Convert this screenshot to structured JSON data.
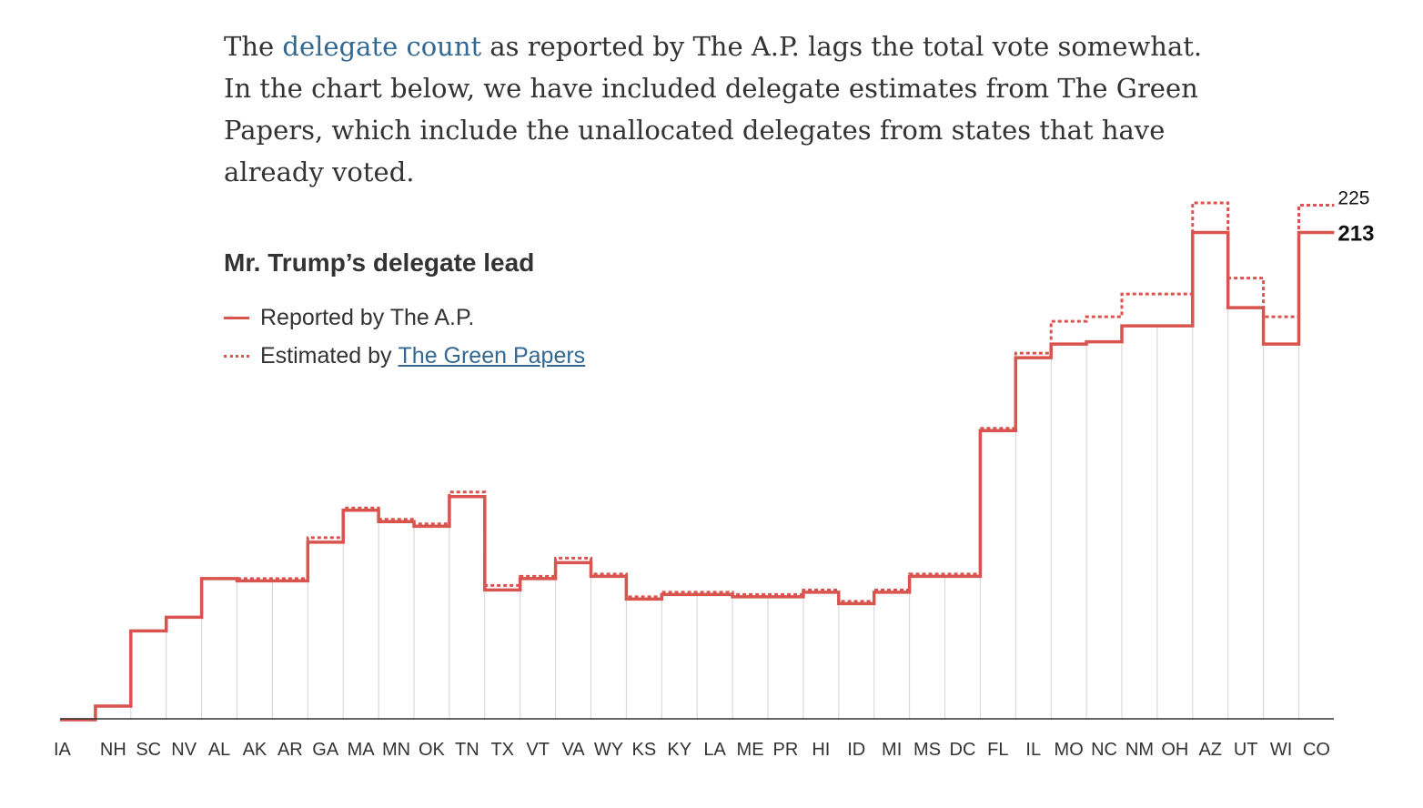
{
  "intro": {
    "prefix": "The ",
    "link": "delegate count",
    "suffix": " as reported by The A.P. lags the total vote somewhat. In the chart below, we have included delegate estimates from The Green Papers, which include the unallocated delegates from states that have already voted."
  },
  "legend": {
    "reported_label": "Reported by The A.P.",
    "estimated_prefix": "Estimated by",
    "estimated_link": "The Green Papers"
  },
  "colors": {
    "line": "#d9534f",
    "link": "#326891",
    "grid": "#d9d9d9",
    "axis": "#333333"
  },
  "chart_data": {
    "type": "line",
    "step": true,
    "title": "Mr. Trump’s delegate lead",
    "categories": [
      "IA",
      "NH",
      "SC",
      "NV",
      "AL",
      "AK",
      "AR",
      "GA",
      "MA",
      "MN",
      "OK",
      "TN",
      "TX",
      "VT",
      "VA",
      "WY",
      "KS",
      "KY",
      "LA",
      "ME",
      "PR",
      "HI",
      "ID",
      "MI",
      "MS",
      "DC",
      "FL",
      "IL",
      "MO",
      "NC",
      "NM",
      "OH",
      "AZ",
      "UT",
      "WI",
      "CO"
    ],
    "series": [
      {
        "name": "Reported by The A.P.",
        "style": "solid",
        "values": [
          -1,
          5,
          38,
          44,
          61,
          60,
          60,
          77,
          91,
          86,
          84,
          97,
          56,
          61,
          68,
          62,
          52,
          54,
          54,
          53,
          53,
          55,
          50,
          55,
          62,
          62,
          126,
          158,
          164,
          165,
          172,
          172,
          213,
          180,
          164,
          213
        ],
        "end_label": "213"
      },
      {
        "name": "Estimated by The Green Papers",
        "style": "dotted",
        "values": [
          -1,
          5,
          38,
          44,
          61,
          61,
          61,
          79,
          92,
          87,
          85,
          99,
          58,
          62,
          70,
          63,
          53,
          55,
          55,
          54,
          54,
          56,
          51,
          56,
          63,
          63,
          127,
          160,
          174,
          176,
          186,
          186,
          226,
          193,
          176,
          225
        ],
        "end_label": "225"
      }
    ],
    "ylim": [
      -1,
      226
    ],
    "grid": "vertical",
    "legend_position": "top-left"
  }
}
